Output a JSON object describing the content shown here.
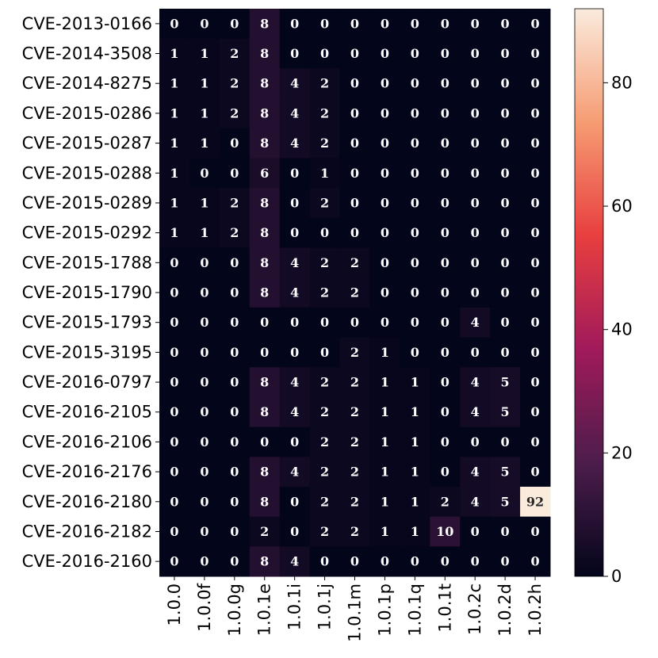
{
  "chart_data": {
    "type": "heatmap",
    "title": "",
    "xlabel": "",
    "ylabel": "",
    "rows": [
      "CVE-2013-0166",
      "CVE-2014-3508",
      "CVE-2014-8275",
      "CVE-2015-0286",
      "CVE-2015-0287",
      "CVE-2015-0288",
      "CVE-2015-0289",
      "CVE-2015-0292",
      "CVE-2015-1788",
      "CVE-2015-1790",
      "CVE-2015-1793",
      "CVE-2015-3195",
      "CVE-2016-0797",
      "CVE-2016-2105",
      "CVE-2016-2106",
      "CVE-2016-2176",
      "CVE-2016-2180",
      "CVE-2016-2182",
      "CVE-2016-2160"
    ],
    "columns": [
      "1.0.0",
      "1.0.0f",
      "1.0.0g",
      "1.0.1e",
      "1.0.1i",
      "1.0.1j",
      "1.0.1m",
      "1.0.1p",
      "1.0.1q",
      "1.0.1t",
      "1.0.2c",
      "1.0.2d",
      "1.0.2h"
    ],
    "values": [
      [
        0,
        0,
        0,
        8,
        0,
        0,
        0,
        0,
        0,
        0,
        0,
        0,
        0
      ],
      [
        1,
        1,
        2,
        8,
        0,
        0,
        0,
        0,
        0,
        0,
        0,
        0,
        0
      ],
      [
        1,
        1,
        2,
        8,
        4,
        2,
        0,
        0,
        0,
        0,
        0,
        0,
        0
      ],
      [
        1,
        1,
        2,
        8,
        4,
        2,
        0,
        0,
        0,
        0,
        0,
        0,
        0
      ],
      [
        1,
        1,
        0,
        8,
        4,
        2,
        0,
        0,
        0,
        0,
        0,
        0,
        0
      ],
      [
        1,
        0,
        0,
        6,
        0,
        1,
        0,
        0,
        0,
        0,
        0,
        0,
        0
      ],
      [
        1,
        1,
        2,
        8,
        0,
        2,
        0,
        0,
        0,
        0,
        0,
        0,
        0
      ],
      [
        1,
        1,
        2,
        8,
        0,
        0,
        0,
        0,
        0,
        0,
        0,
        0,
        0
      ],
      [
        0,
        0,
        0,
        8,
        4,
        2,
        2,
        0,
        0,
        0,
        0,
        0,
        0
      ],
      [
        0,
        0,
        0,
        8,
        4,
        2,
        2,
        0,
        0,
        0,
        0,
        0,
        0
      ],
      [
        0,
        0,
        0,
        0,
        0,
        0,
        0,
        0,
        0,
        0,
        4,
        0,
        0
      ],
      [
        0,
        0,
        0,
        0,
        0,
        0,
        2,
        1,
        0,
        0,
        0,
        0,
        0
      ],
      [
        0,
        0,
        0,
        8,
        4,
        2,
        2,
        1,
        1,
        0,
        4,
        5,
        0
      ],
      [
        0,
        0,
        0,
        8,
        4,
        2,
        2,
        1,
        1,
        0,
        4,
        5,
        0
      ],
      [
        0,
        0,
        0,
        0,
        0,
        2,
        2,
        1,
        1,
        0,
        0,
        0,
        0
      ],
      [
        0,
        0,
        0,
        8,
        4,
        2,
        2,
        1,
        1,
        0,
        4,
        5,
        0
      ],
      [
        0,
        0,
        0,
        8,
        0,
        2,
        2,
        1,
        1,
        2,
        4,
        5,
        92
      ],
      [
        0,
        0,
        0,
        2,
        0,
        2,
        2,
        1,
        1,
        10,
        0,
        0,
        0
      ],
      [
        0,
        0,
        0,
        8,
        4,
        0,
        0,
        0,
        0,
        0,
        0,
        0,
        0
      ]
    ],
    "colorbar": {
      "min": 0,
      "max": 92,
      "ticks": [
        0,
        20,
        40,
        60,
        80
      ],
      "colormap": "rocket",
      "stops": [
        "#03051a",
        "#4c1d4b",
        "#a11a5b",
        "#e83f3f",
        "#f69c73",
        "#faebdd"
      ]
    },
    "grid": false,
    "annotations": true
  }
}
